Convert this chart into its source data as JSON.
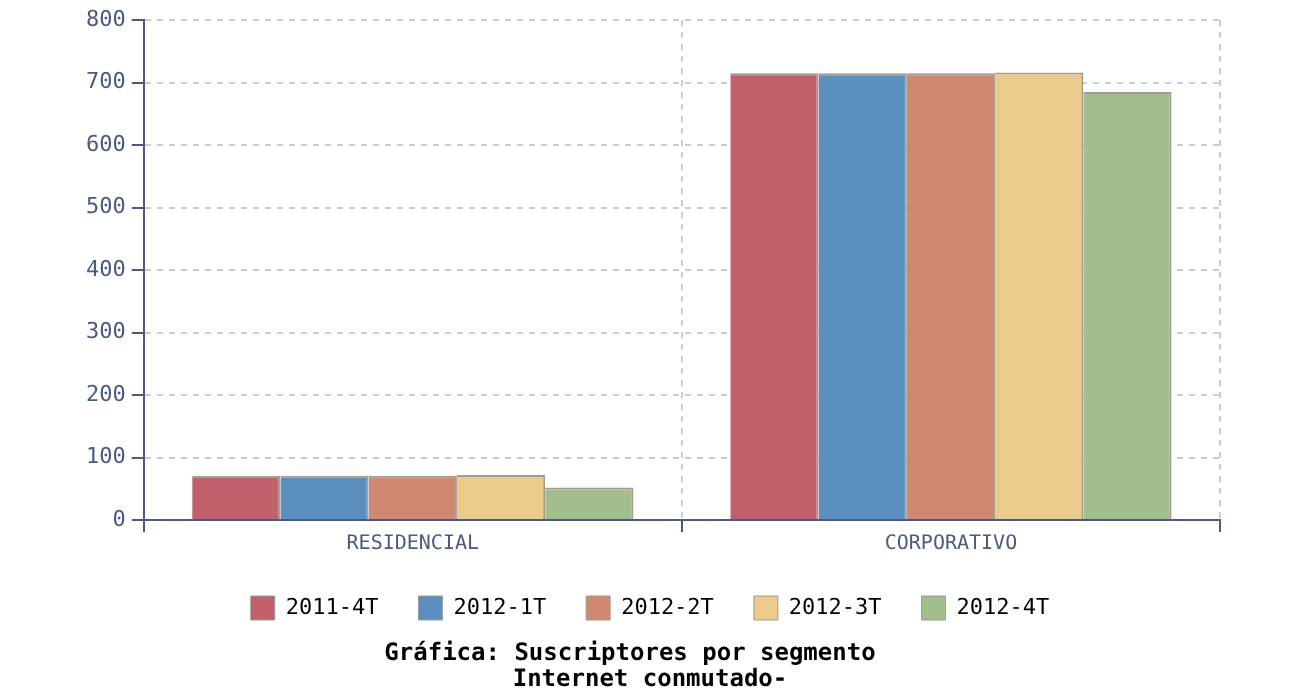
{
  "chart_data": {
    "type": "bar",
    "title": "Gráfica: Suscriptores por segmento",
    "subtitle": "Internet conmutado-",
    "categories": [
      "RESIDENCIAL",
      "CORPORATIVO"
    ],
    "series": [
      {
        "name": "2011-4T",
        "color": "#c0606a",
        "values": [
          71,
          715
        ]
      },
      {
        "name": "2012-1T",
        "color": "#5b8fc0",
        "values": [
          71,
          715
        ]
      },
      {
        "name": "2012-2T",
        "color": "#d08870",
        "values": [
          71,
          715
        ]
      },
      {
        "name": "2012-3T",
        "color": "#eacb8c",
        "values": [
          72,
          716
        ]
      },
      {
        "name": "2012-4T",
        "color": "#a4bd8c",
        "values": [
          52,
          685
        ]
      }
    ],
    "ylim": [
      0,
      800
    ],
    "yticks": [
      0,
      100,
      200,
      300,
      400,
      500,
      600,
      700,
      800
    ],
    "grid": true,
    "legend": "bottom"
  }
}
